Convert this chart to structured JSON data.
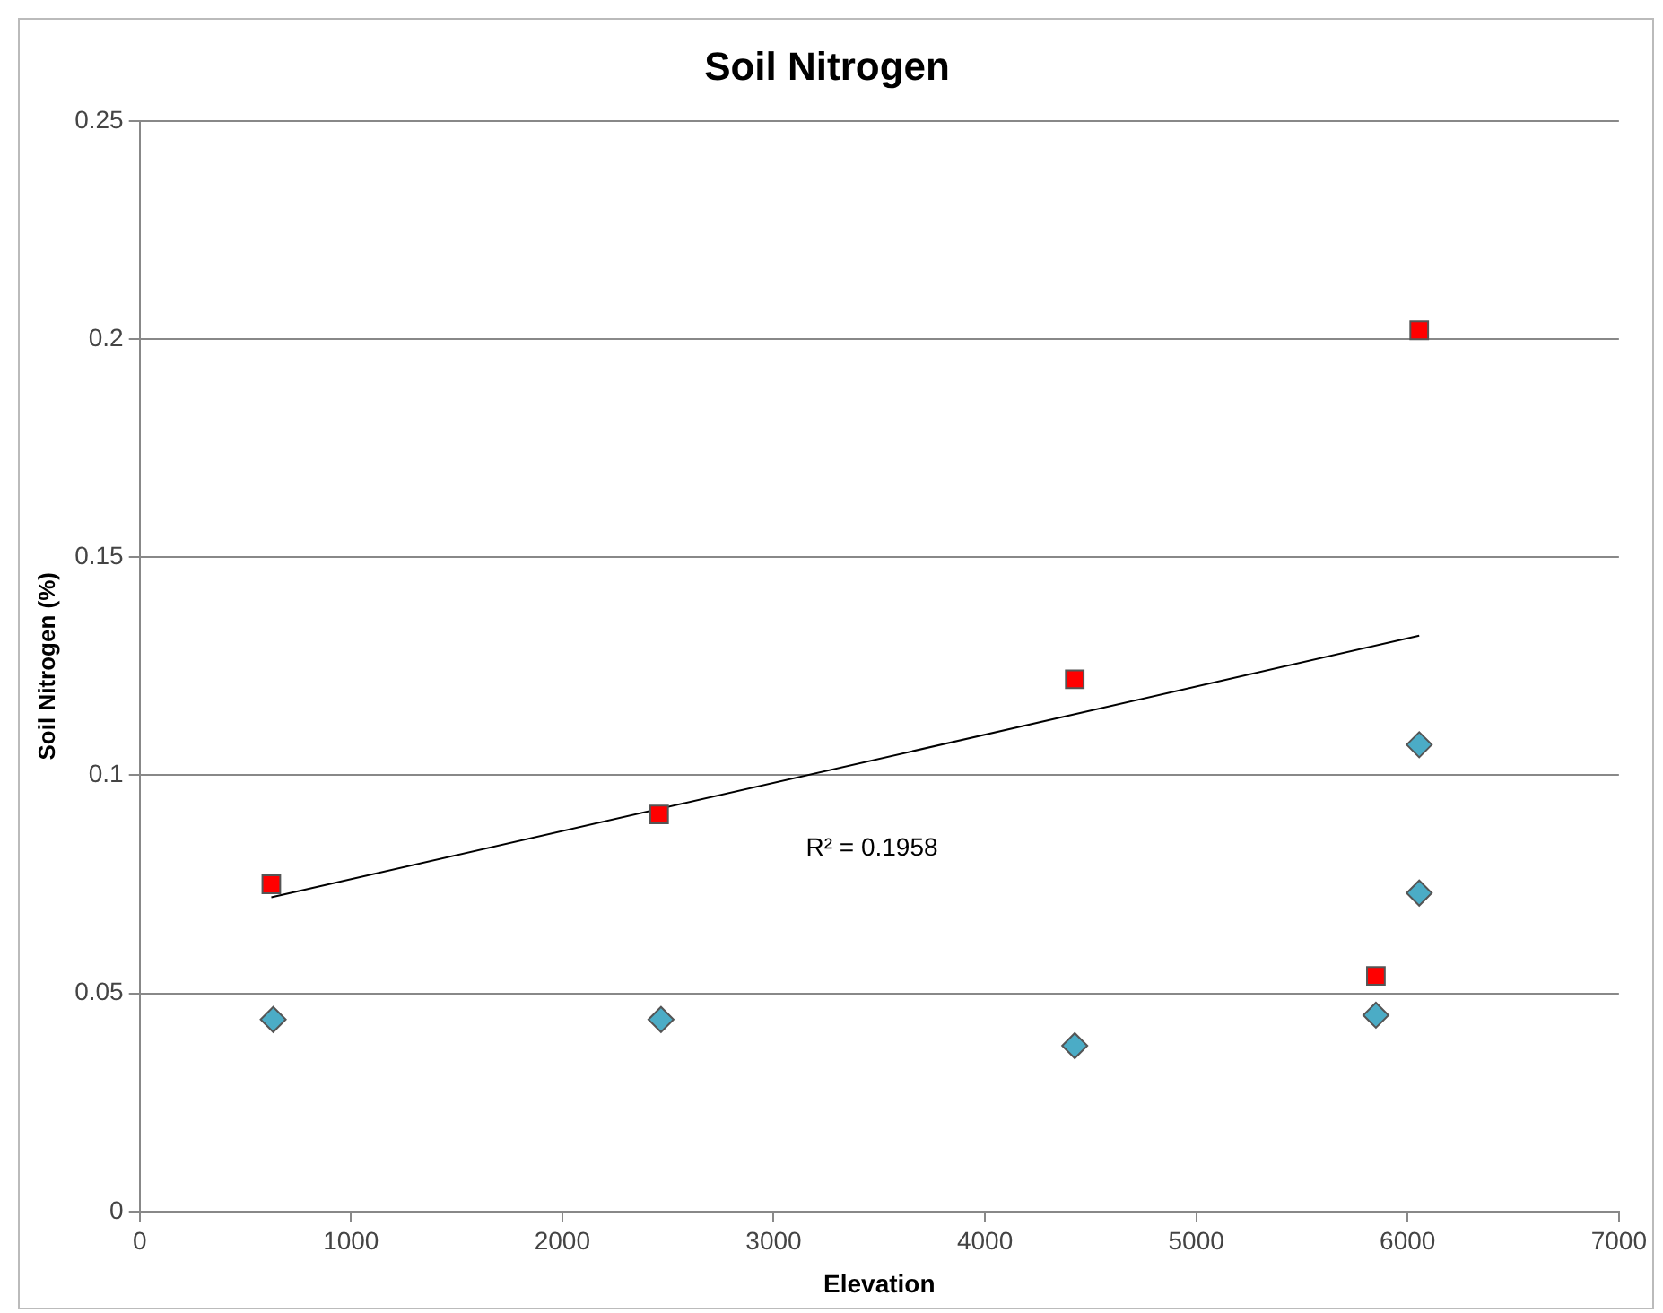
{
  "chart_data": {
    "type": "scatter",
    "title": "Soil Nitrogen",
    "xlabel": "Elevation",
    "ylabel": "Soil Nitrogen (%)",
    "xlim": [
      0,
      7000
    ],
    "xticks": [
      0,
      1000,
      2000,
      3000,
      4000,
      5000,
      6000,
      7000
    ],
    "ylim": [
      0,
      0.25
    ],
    "yticks": [
      0,
      0.05,
      0.1,
      0.15,
      0.2,
      0.25
    ],
    "grid": "y",
    "legend": false,
    "series": [
      {
        "color": "#ff0000",
        "marker": "square",
        "x": [
          623,
          2458,
          4425,
          5850,
          6055
        ],
        "values": [
          0.075,
          0.091,
          0.122,
          0.054,
          0.202
        ]
      },
      {
        "color": "#4bacc6",
        "marker": "diamond",
        "x": [
          632,
          2467,
          4425,
          5850,
          6055,
          6055
        ],
        "values": [
          0.044,
          0.044,
          0.038,
          0.045,
          0.107,
          0.073
        ]
      },
      {
        "type": "line",
        "color": "#000000",
        "marker": "none",
        "x": [
          623,
          6055
        ],
        "values": [
          0.072,
          0.132
        ]
      }
    ],
    "annotations": [
      "R² = 0.1958"
    ]
  }
}
